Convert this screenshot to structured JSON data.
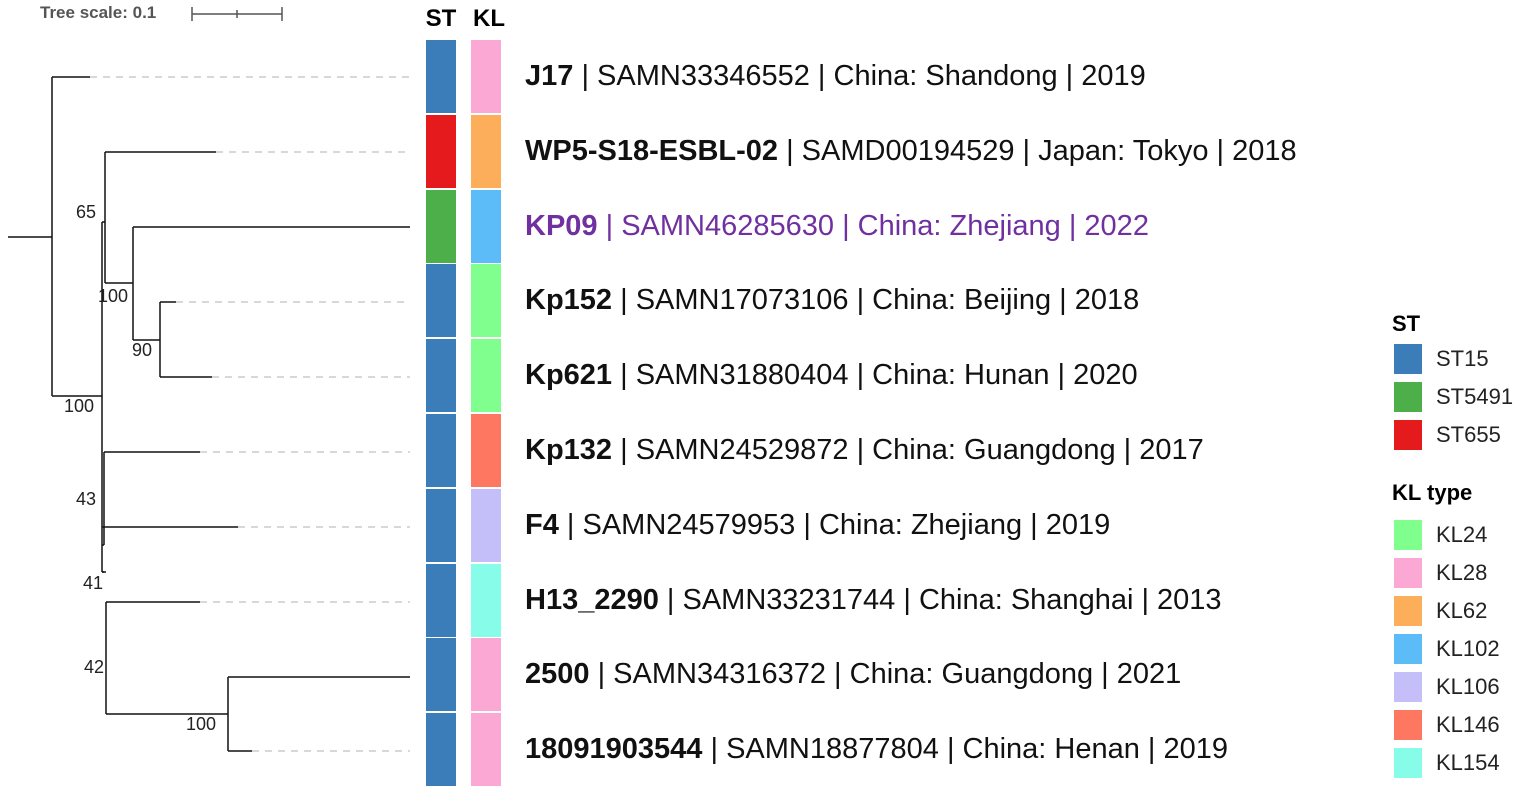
{
  "tree_scale": {
    "label": "Tree scale: 0.1"
  },
  "columns": {
    "st": "ST",
    "kl": "KL"
  },
  "leaves": [
    {
      "id": "J17",
      "rest": " | SAMN33346552 | China: Shandong | 2019",
      "st": "ST15",
      "kl": "KL28",
      "highlight": false
    },
    {
      "id": "WP5-S18-ESBL-02",
      "rest": " | SAMD00194529 | Japan: Tokyo | 2018",
      "st": "ST655",
      "kl": "KL62",
      "highlight": false
    },
    {
      "id": "KP09",
      "rest": " | SAMN46285630 | China: Zhejiang | 2022",
      "st": "ST5491",
      "kl": "KL102",
      "highlight": true
    },
    {
      "id": "Kp152",
      "rest": " | SAMN17073106 | China: Beijing | 2018",
      "st": "ST15",
      "kl": "KL24",
      "highlight": false
    },
    {
      "id": "Kp621",
      "rest": " | SAMN31880404 | China: Hunan | 2020",
      "st": "ST15",
      "kl": "KL24",
      "highlight": false
    },
    {
      "id": "Kp132",
      "rest": " | SAMN24529872 | China: Guangdong | 2017",
      "st": "ST15",
      "kl": "KL146",
      "highlight": false
    },
    {
      "id": "F4",
      "rest": " | SAMN24579953 | China: Zhejiang | 2019",
      "st": "ST15",
      "kl": "KL106",
      "highlight": false
    },
    {
      "id": "H13_2290",
      "rest": " | SAMN33231744 | China: Shanghai | 2013",
      "st": "ST15",
      "kl": "KL154",
      "highlight": false
    },
    {
      "id": "2500",
      "rest": " | SAMN34316372 | China: Guangdong | 2021",
      "st": "ST15",
      "kl": "KL28",
      "highlight": false
    },
    {
      "id": "18091903544",
      "rest": " | SAMN18877804 | China: Henan | 2019",
      "st": "ST15",
      "kl": "KL28",
      "highlight": false
    }
  ],
  "bootstrap": [
    "65",
    "100",
    "90",
    "100",
    "43",
    "41",
    "42",
    "100"
  ],
  "legend": {
    "st": {
      "title": "ST",
      "items": [
        {
          "label": "ST15",
          "color": "#3a7db8"
        },
        {
          "label": "ST5491",
          "color": "#4daf4a"
        },
        {
          "label": "ST655",
          "color": "#e41a1c"
        }
      ]
    },
    "kl": {
      "title": "KL type",
      "items": [
        {
          "label": "KL24",
          "color": "#80ff8f"
        },
        {
          "label": "KL28",
          "color": "#fba9d4"
        },
        {
          "label": "KL62",
          "color": "#fdae5b"
        },
        {
          "label": "KL102",
          "color": "#5cbcf7"
        },
        {
          "label": "KL106",
          "color": "#c4bff9"
        },
        {
          "label": "KL146",
          "color": "#fe7760"
        },
        {
          "label": "KL154",
          "color": "#87fde9"
        }
      ]
    }
  },
  "colors": {
    "highlight_text": "#7030a0",
    "branch": "#111111",
    "leader": "#cccccc"
  }
}
